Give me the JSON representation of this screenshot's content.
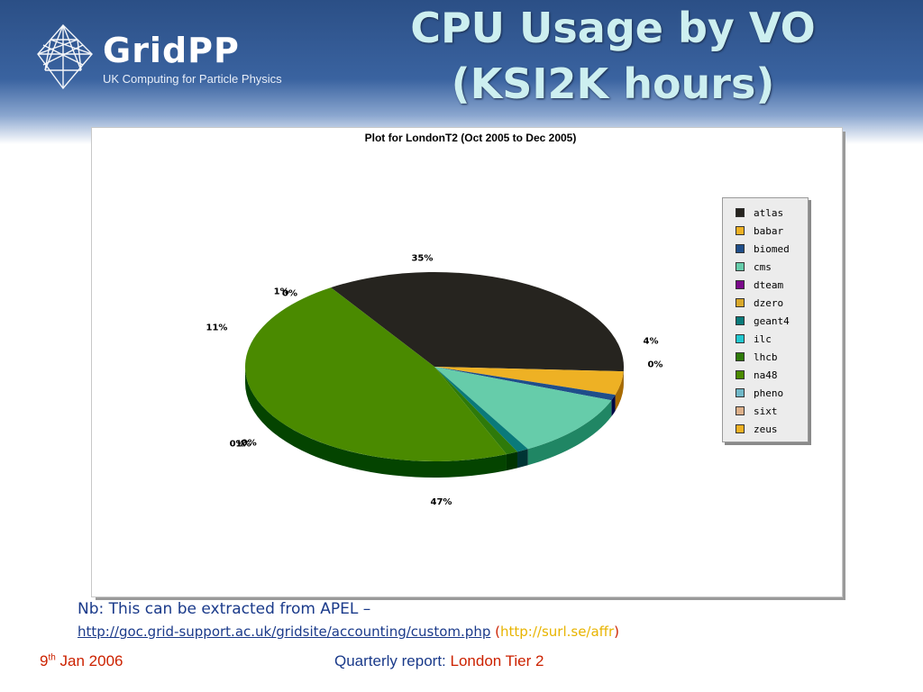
{
  "header": {
    "logo_word": "GridPP",
    "logo_tagline": "UK Computing for Particle Physics",
    "title_line1": "CPU Usage by VO",
    "title_line2": "(KSI2K hours)"
  },
  "chart_data": {
    "type": "pie",
    "title": "Plot for LondonT2 (Oct 2005 to Dec 2005)",
    "categories": [
      "atlas",
      "babar",
      "biomed",
      "cms",
      "dteam",
      "dzero",
      "geant4",
      "ilc",
      "lhcb",
      "na48",
      "pheno",
      "sixt",
      "zeus"
    ],
    "values": [
      35,
      4,
      1,
      11,
      0,
      0,
      1,
      0,
      1,
      47,
      0,
      0,
      0
    ],
    "colors": [
      "#26241f",
      "#eeb124",
      "#1f4e8a",
      "#66ccaa",
      "#7a0a8a",
      "#d9a82a",
      "#0a7a7a",
      "#22c8d0",
      "#2e7a0a",
      "#4a8a00",
      "#70b8c8",
      "#ddb08a",
      "#eeb124"
    ],
    "slice_labels": [
      {
        "text": "35%"
      },
      {
        "text": "4%"
      },
      {
        "text": "0%"
      },
      {
        "text": "1%"
      },
      {
        "text": "0%"
      },
      {
        "text": "11%"
      },
      {
        "text": "0%"
      },
      {
        "text": "1%"
      },
      {
        "text": "0%"
      },
      {
        "text": "47%"
      }
    ],
    "legend_position": "right"
  },
  "footer": {
    "note_line1": "Nb: This can be extracted from APEL –",
    "link1": "http://goc.grid-support.ac.uk/gridsite/accounting/custom.php",
    "link2": "http://surl.se/affr",
    "date_day": "9",
    "date_suffix": "th",
    "date_rest": "Jan 2006",
    "report_label": "Quarterly report:",
    "report_value": "London Tier 2"
  }
}
